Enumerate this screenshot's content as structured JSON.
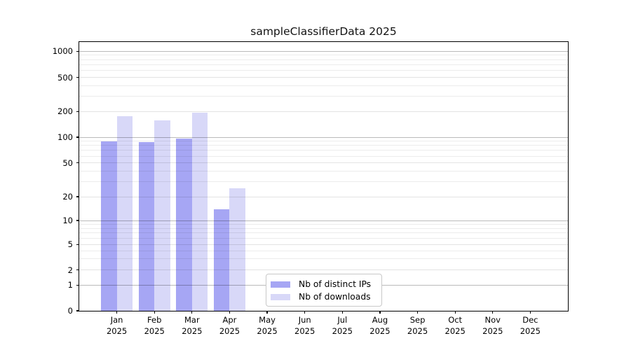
{
  "title": "sampleClassifierData 2025",
  "chart_data": {
    "type": "bar",
    "title": "sampleClassifierData 2025",
    "categories": [
      "Jan 2025",
      "Feb 2025",
      "Mar 2025",
      "Apr 2025",
      "May 2025",
      "Jun 2025",
      "Jul 2025",
      "Aug 2025",
      "Sep 2025",
      "Oct 2025",
      "Nov 2025",
      "Dec 2025"
    ],
    "series": [
      {
        "name": "Nb of distinct IPs",
        "color": "#a6a6f4",
        "values": [
          90,
          88,
          96,
          14,
          0,
          0,
          0,
          0,
          0,
          0,
          0,
          0
        ]
      },
      {
        "name": "Nb of downloads",
        "color": "#d8d8f8",
        "values": [
          175,
          157,
          195,
          25,
          0,
          0,
          0,
          0,
          0,
          0,
          0,
          0
        ]
      }
    ],
    "xlabel": "",
    "ylabel": "",
    "yscale": "symlog",
    "yticks": [
      0,
      1,
      2,
      5,
      10,
      20,
      50,
      100,
      200,
      500,
      1000
    ],
    "ylim": [
      0,
      1300
    ],
    "grid": true,
    "legend_position": "inside-bottom-center"
  },
  "legend": {
    "items": [
      {
        "label": "Nb of distinct IPs",
        "color": "#a6a6f4"
      },
      {
        "label": "Nb of downloads",
        "color": "#d8d8f8"
      }
    ]
  },
  "colors": {
    "background": "#ffffff",
    "frame": "#000000",
    "grid_major": "#bababa",
    "grid_minor": "#e9e9e9",
    "text": "#000000"
  }
}
